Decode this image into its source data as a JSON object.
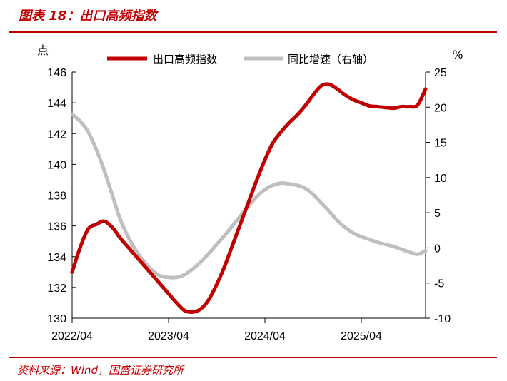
{
  "header": {
    "figure_title": "图表 18：出口高频指数"
  },
  "footer": {
    "source": "资料来源：Wind，国盛证券研究所"
  },
  "colors": {
    "accent": "#C00000",
    "series_left": "#C00000",
    "series_right": "#BFBFBF",
    "axis": "#000000"
  },
  "chart_data": {
    "type": "line",
    "x_tick_labels": [
      "2022/04",
      "2023/04",
      "2024/04",
      "2025/04"
    ],
    "x_tick_dates": [
      "2022-04",
      "2023-04",
      "2024-04",
      "2025-04"
    ],
    "x_range": [
      "2022-04",
      "2025-12"
    ],
    "left_axis": {
      "unit": "点",
      "ylim": [
        130,
        146
      ],
      "ticks": [
        130,
        132,
        134,
        136,
        138,
        140,
        142,
        144,
        146
      ]
    },
    "right_axis": {
      "unit": "%",
      "ylim": [
        -10,
        25
      ],
      "ticks": [
        -10,
        -5,
        0,
        5,
        10,
        15,
        20,
        25
      ]
    },
    "legend": {
      "position": "top"
    },
    "grid": false,
    "series": [
      {
        "name": "出口高频指数",
        "axis": "left",
        "points": [
          [
            "2022-04",
            133.0
          ],
          [
            "2022-05",
            134.6
          ],
          [
            "2022-06",
            135.8
          ],
          [
            "2022-07",
            136.1
          ],
          [
            "2022-08",
            136.3
          ],
          [
            "2022-09",
            135.9
          ],
          [
            "2022-10",
            135.2
          ],
          [
            "2022-11",
            134.6
          ],
          [
            "2022-12",
            134.0
          ],
          [
            "2023-01",
            133.4
          ],
          [
            "2023-02",
            132.8
          ],
          [
            "2023-03",
            132.2
          ],
          [
            "2023-04",
            131.6
          ],
          [
            "2023-05",
            131.0
          ],
          [
            "2023-06",
            130.5
          ],
          [
            "2023-07",
            130.4
          ],
          [
            "2023-08",
            130.6
          ],
          [
            "2023-09",
            131.2
          ],
          [
            "2023-10",
            132.2
          ],
          [
            "2023-11",
            133.4
          ],
          [
            "2023-12",
            134.8
          ],
          [
            "2024-01",
            136.2
          ],
          [
            "2024-02",
            137.6
          ],
          [
            "2024-03",
            139.0
          ],
          [
            "2024-04",
            140.3
          ],
          [
            "2024-05",
            141.4
          ],
          [
            "2024-06",
            142.1
          ],
          [
            "2024-07",
            142.7
          ],
          [
            "2024-08",
            143.2
          ],
          [
            "2024-09",
            143.8
          ],
          [
            "2024-10",
            144.5
          ],
          [
            "2024-11",
            145.1
          ],
          [
            "2024-12",
            145.2
          ],
          [
            "2025-01",
            144.9
          ],
          [
            "2025-02",
            144.5
          ],
          [
            "2025-03",
            144.2
          ],
          [
            "2025-04",
            144.0
          ],
          [
            "2025-05",
            143.8
          ],
          [
            "2025-06",
            143.75
          ],
          [
            "2025-07",
            143.7
          ],
          [
            "2025-08",
            143.65
          ],
          [
            "2025-09",
            143.75
          ],
          [
            "2025-10",
            143.75
          ],
          [
            "2025-11",
            143.85
          ],
          [
            "2025-12",
            144.9
          ]
        ]
      },
      {
        "name": "同比增速（右轴）",
        "axis": "right",
        "points": [
          [
            "2022-04",
            19.0
          ],
          [
            "2022-05",
            18.0
          ],
          [
            "2022-06",
            16.5
          ],
          [
            "2022-07",
            14.0
          ],
          [
            "2022-08",
            11.0
          ],
          [
            "2022-09",
            7.5
          ],
          [
            "2022-10",
            4.0
          ],
          [
            "2022-11",
            1.5
          ],
          [
            "2022-12",
            -0.5
          ],
          [
            "2023-01",
            -2.0
          ],
          [
            "2023-02",
            -3.2
          ],
          [
            "2023-03",
            -4.0
          ],
          [
            "2023-04",
            -4.2
          ],
          [
            "2023-05",
            -4.2
          ],
          [
            "2023-06",
            -3.8
          ],
          [
            "2023-07",
            -3.0
          ],
          [
            "2023-08",
            -2.0
          ],
          [
            "2023-09",
            -0.8
          ],
          [
            "2023-10",
            0.5
          ],
          [
            "2023-11",
            1.8
          ],
          [
            "2023-12",
            3.2
          ],
          [
            "2024-01",
            4.6
          ],
          [
            "2024-02",
            6.0
          ],
          [
            "2024-03",
            7.3
          ],
          [
            "2024-04",
            8.3
          ],
          [
            "2024-05",
            8.9
          ],
          [
            "2024-06",
            9.2
          ],
          [
            "2024-07",
            9.1
          ],
          [
            "2024-08",
            8.9
          ],
          [
            "2024-09",
            8.5
          ],
          [
            "2024-10",
            7.6
          ],
          [
            "2024-11",
            6.4
          ],
          [
            "2024-12",
            5.2
          ],
          [
            "2025-01",
            3.9
          ],
          [
            "2025-02",
            2.9
          ],
          [
            "2025-03",
            2.1
          ],
          [
            "2025-04",
            1.6
          ],
          [
            "2025-05",
            1.2
          ],
          [
            "2025-06",
            0.8
          ],
          [
            "2025-07",
            0.5
          ],
          [
            "2025-08",
            0.2
          ],
          [
            "2025-09",
            -0.2
          ],
          [
            "2025-10",
            -0.6
          ],
          [
            "2025-11",
            -0.9
          ],
          [
            "2025-12",
            -0.4
          ]
        ]
      }
    ]
  }
}
